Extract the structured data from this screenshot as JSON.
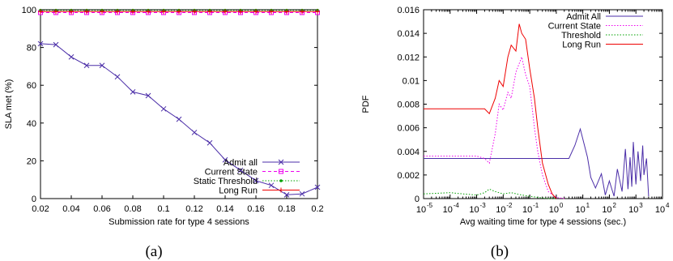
{
  "chart_data": [
    {
      "type": "line",
      "caption": "(a)",
      "xlabel": "Submission rate for type 4 sessions",
      "ylabel": "SLA met (%)",
      "xlim": [
        0.02,
        0.2
      ],
      "ylim": [
        0,
        100
      ],
      "xticks": [
        0.02,
        0.04,
        0.06,
        0.08,
        0.1,
        0.12,
        0.14,
        0.16,
        0.18,
        0.2
      ],
      "xtick_labels": [
        "0.02",
        "0.04",
        "0.06",
        "0.08",
        "0.1",
        "0.12",
        "0.14",
        "0.16",
        "0.18",
        "0.2"
      ],
      "yticks": [
        0,
        20,
        40,
        60,
        80,
        100
      ],
      "ytick_labels": [
        "0",
        "20",
        "40",
        "60",
        "80",
        "100"
      ],
      "grid": false,
      "legend_position": "bottom-right",
      "x": [
        0.02,
        0.03,
        0.04,
        0.05,
        0.06,
        0.07,
        0.08,
        0.09,
        0.1,
        0.11,
        0.12,
        0.13,
        0.14,
        0.15,
        0.16,
        0.17,
        0.18,
        0.19,
        0.2
      ],
      "series": [
        {
          "name": "Admit all",
          "color": "#4b2ea8",
          "marker": "x",
          "dash": "solid",
          "values": [
            82,
            81.5,
            75,
            70.5,
            70.5,
            64.5,
            56.5,
            54.5,
            47.5,
            42,
            35,
            29.5,
            20.5,
            15,
            9.5,
            7,
            2,
            2.5,
            6
          ]
        },
        {
          "name": "Current State",
          "color": "#ee00ee",
          "marker": "square",
          "dash": "dashed",
          "values": [
            98.5,
            98.5,
            98.5,
            98.5,
            98.5,
            98.5,
            98.5,
            98.5,
            98.5,
            98.5,
            98.5,
            98.5,
            98.5,
            98.5,
            98.5,
            98.5,
            98.5,
            98.5,
            98.5
          ]
        },
        {
          "name": "Static Threshold",
          "color": "#00a000",
          "marker": "dot",
          "dash": "dotted",
          "values": [
            99.7,
            99.7,
            99.7,
            99.7,
            99.7,
            99.7,
            99.7,
            99.7,
            99.7,
            99.7,
            99.7,
            99.7,
            99.7,
            99.7,
            99.7,
            99.7,
            99.7,
            99.7,
            99.7
          ]
        },
        {
          "name": "Long Run",
          "color": "#ee0000",
          "marker": "plus",
          "dash": "solid",
          "values": [
            99,
            99,
            99,
            99,
            99,
            99,
            99,
            99,
            99,
            99,
            99,
            99,
            99,
            99,
            99,
            99,
            99,
            99,
            99
          ]
        }
      ]
    },
    {
      "type": "line",
      "caption": "(b)",
      "xlabel": "Avg waiting time for type 4 sessions (sec.)",
      "ylabel": "PDF",
      "xscale": "log",
      "xlim": [
        1e-05,
        10000
      ],
      "ylim": [
        0,
        0.016
      ],
      "xticks": [
        1e-05,
        0.0001,
        0.001,
        0.01,
        0.1,
        1,
        10,
        100,
        1000,
        10000
      ],
      "xtick_base": "10",
      "xtick_exponents": [
        "-5",
        "-4",
        "-3",
        "-2",
        "-1",
        "0",
        "1",
        "2",
        "3",
        "4"
      ],
      "yticks": [
        0,
        0.002,
        0.004,
        0.006,
        0.008,
        0.01,
        0.012,
        0.014,
        0.016
      ],
      "ytick_labels": [
        "0",
        "0.002",
        "0.004",
        "0.006",
        "0.008",
        "0.01",
        "0.012",
        "0.014",
        "0.016"
      ],
      "grid": false,
      "legend_position": "top-right",
      "series": [
        {
          "name": "Admit All",
          "color": "#4b2ea8",
          "dash": "solid",
          "x": [
            1e-05,
            0.001,
            0.01,
            0.1,
            1,
            3,
            5,
            8,
            15,
            20,
            30,
            50,
            70,
            100,
            150,
            200,
            300,
            400,
            500,
            600,
            700,
            800,
            1000,
            1200,
            1500,
            1800,
            2000,
            2500,
            3000
          ],
          "y": [
            0.0034,
            0.0034,
            0.0034,
            0.0034,
            0.0034,
            0.0034,
            0.0045,
            0.0059,
            0.0035,
            0.0018,
            0.0009,
            0.0021,
            0.0003,
            0.0015,
            0.0002,
            0.0025,
            0.0006,
            0.0042,
            0.0008,
            0.0035,
            0.001,
            0.0048,
            0.0012,
            0.004,
            0.0015,
            0.0045,
            0.002,
            0.0034,
            0.0002
          ]
        },
        {
          "name": "Current State",
          "color": "#ee00ee",
          "dash": "dotted",
          "x": [
            1e-05,
            0.001,
            0.002,
            0.003,
            0.005,
            0.007,
            0.01,
            0.015,
            0.02,
            0.03,
            0.05,
            0.07,
            0.1,
            0.15,
            0.2,
            0.3,
            0.5,
            1,
            2
          ],
          "y": [
            0.0036,
            0.0036,
            0.0034,
            0.003,
            0.0055,
            0.008,
            0.0075,
            0.009,
            0.0085,
            0.0107,
            0.012,
            0.0105,
            0.0095,
            0.006,
            0.004,
            0.002,
            0.0006,
            0.0001,
            0.0
          ]
        },
        {
          "name": "Threshold",
          "color": "#00a000",
          "dash": "dotted",
          "x": [
            1e-05,
            0.0001,
            0.0003,
            0.001,
            0.002,
            0.003,
            0.005,
            0.01,
            0.02,
            0.05,
            0.1,
            0.2,
            0.5,
            1
          ],
          "y": [
            0.0004,
            0.0005,
            0.0004,
            0.0003,
            0.0005,
            0.0008,
            0.0006,
            0.0004,
            0.0005,
            0.0003,
            0.0002,
            0.0001,
            0.0,
            0.0
          ]
        },
        {
          "name": "Long Run",
          "color": "#ee0000",
          "dash": "solid",
          "x": [
            1e-05,
            0.001,
            0.002,
            0.003,
            0.005,
            0.007,
            0.01,
            0.015,
            0.02,
            0.03,
            0.04,
            0.05,
            0.07,
            0.1,
            0.15,
            0.2,
            0.3,
            0.5,
            0.7,
            1
          ],
          "y": [
            0.0076,
            0.0076,
            0.0076,
            0.0072,
            0.0085,
            0.01,
            0.0095,
            0.012,
            0.013,
            0.0125,
            0.0148,
            0.014,
            0.0135,
            0.011,
            0.0085,
            0.006,
            0.003,
            0.0012,
            0.0004,
            0.0
          ]
        }
      ]
    }
  ]
}
